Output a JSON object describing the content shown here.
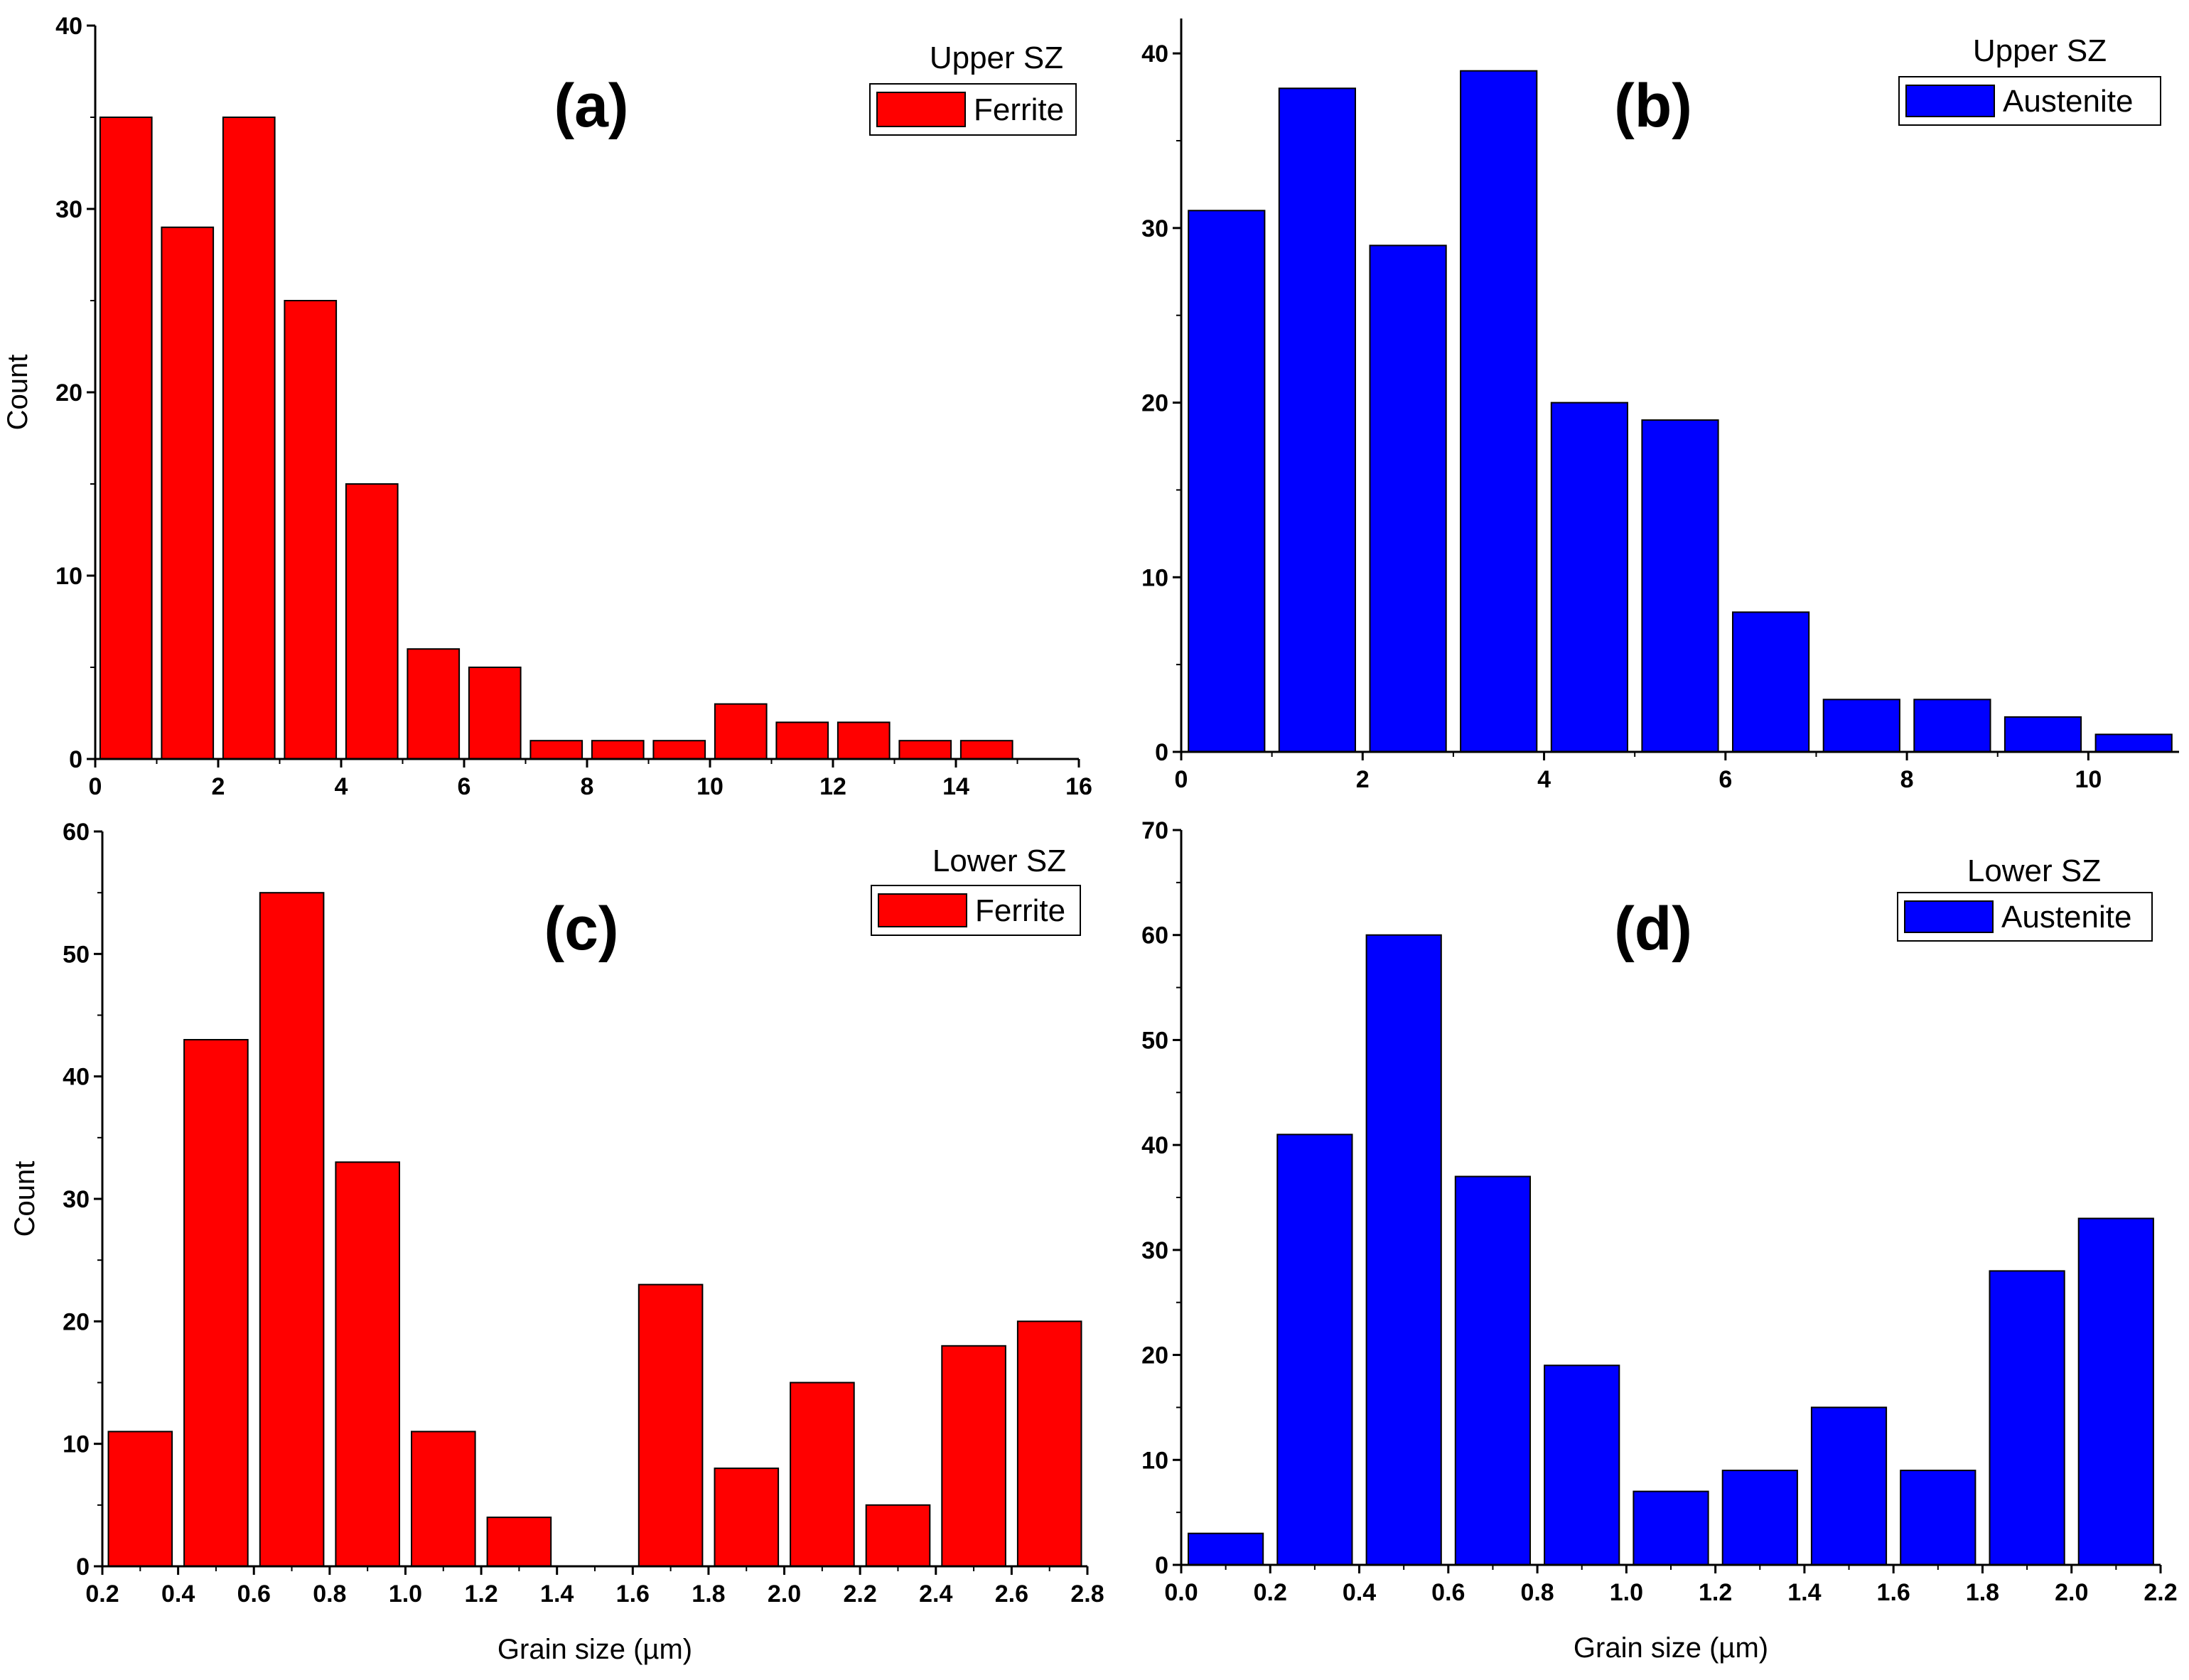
{
  "figure": {
    "panels": [
      "a",
      "b",
      "c",
      "d"
    ]
  },
  "colors": {
    "ferrite": "#ff0000",
    "austenite": "#0000ff",
    "axis": "#000000"
  },
  "chart_data": [
    {
      "id": "a",
      "type": "bar",
      "panel_label": "(a)",
      "legend_title": "Upper SZ",
      "legend_entry": "Ferrite",
      "legend_position": "top-right",
      "series": [
        {
          "name": "Ferrite",
          "color": "#ff0000",
          "bins": [
            [
              0,
              1
            ],
            [
              1,
              2
            ],
            [
              2,
              3
            ],
            [
              3,
              4
            ],
            [
              4,
              5
            ],
            [
              5,
              6
            ],
            [
              6,
              7
            ],
            [
              7,
              8
            ],
            [
              8,
              9
            ],
            [
              9,
              10
            ],
            [
              10,
              11
            ],
            [
              11,
              12
            ],
            [
              12,
              13
            ],
            [
              13,
              14
            ],
            [
              14,
              15
            ]
          ],
          "values": [
            35,
            29,
            35,
            25,
            15,
            6,
            5,
            1,
            1,
            1,
            3,
            2,
            2,
            1,
            1
          ]
        }
      ],
      "xlabel": "",
      "ylabel": "Count",
      "xlim": [
        0,
        16
      ],
      "ylim": [
        0,
        40
      ],
      "xticks": [
        0,
        2,
        4,
        6,
        8,
        10,
        12,
        14,
        16
      ],
      "xtick_labels": [
        "0",
        "2",
        "4",
        "6",
        "8",
        "10",
        "12",
        "14",
        "16"
      ],
      "yticks": [
        0,
        10,
        20,
        30,
        40
      ],
      "ytick_labels": [
        "0",
        "10",
        "20",
        "30",
        "40"
      ],
      "grid": false
    },
    {
      "id": "b",
      "type": "bar",
      "panel_label": "(b)",
      "legend_title": "Upper SZ",
      "legend_entry": "Austenite",
      "legend_position": "top-right",
      "series": [
        {
          "name": "Austenite",
          "color": "#0000ff",
          "bins": [
            [
              0,
              1
            ],
            [
              1,
              2
            ],
            [
              2,
              3
            ],
            [
              3,
              4
            ],
            [
              4,
              5
            ],
            [
              5,
              6
            ],
            [
              6,
              7
            ],
            [
              7,
              8
            ],
            [
              8,
              9
            ],
            [
              9,
              10
            ],
            [
              10,
              11
            ]
          ],
          "values": [
            31,
            38,
            29,
            39,
            20,
            19,
            8,
            3,
            3,
            2,
            1
          ]
        }
      ],
      "xlabel": "",
      "ylabel": "",
      "xlim": [
        0,
        11
      ],
      "ylim": [
        0,
        42
      ],
      "xticks": [
        0,
        2,
        4,
        6,
        8,
        10
      ],
      "xtick_labels": [
        "0",
        "2",
        "4",
        "6",
        "8",
        "10"
      ],
      "yticks": [
        0,
        10,
        20,
        30,
        40
      ],
      "ytick_labels": [
        "0",
        "10",
        "20",
        "30",
        "40"
      ],
      "grid": false
    },
    {
      "id": "c",
      "type": "bar",
      "panel_label": "(c)",
      "legend_title": "Lower SZ",
      "legend_entry": "Ferrite",
      "legend_position": "top-right",
      "series": [
        {
          "name": "Ferrite",
          "color": "#ff0000",
          "bins": [
            [
              0.2,
              0.4
            ],
            [
              0.4,
              0.6
            ],
            [
              0.6,
              0.8
            ],
            [
              0.8,
              1.0
            ],
            [
              1.0,
              1.2
            ],
            [
              1.2,
              1.4
            ],
            [
              1.4,
              1.6
            ],
            [
              1.6,
              1.8
            ],
            [
              1.8,
              2.0
            ],
            [
              2.0,
              2.2
            ],
            [
              2.2,
              2.4
            ],
            [
              2.4,
              2.6
            ],
            [
              2.6,
              2.8
            ]
          ],
          "values": [
            11,
            43,
            55,
            33,
            11,
            4,
            0,
            23,
            8,
            15,
            5,
            18,
            20
          ]
        }
      ],
      "xlabel": "Grain size (µm)",
      "ylabel": "Count",
      "xlim": [
        0.2,
        2.8
      ],
      "ylim": [
        0,
        60
      ],
      "xticks": [
        0.2,
        0.4,
        0.6,
        0.8,
        1.0,
        1.2,
        1.4,
        1.6,
        1.8,
        2.0,
        2.2,
        2.4,
        2.6,
        2.8
      ],
      "xtick_labels": [
        "0.2",
        "0.4",
        "0.6",
        "0.8",
        "1.0",
        "1.2",
        "1.4",
        "1.6",
        "1.8",
        "2.0",
        "2.2",
        "2.4",
        "2.6",
        "2.8"
      ],
      "yticks": [
        0,
        10,
        20,
        30,
        40,
        50,
        60
      ],
      "ytick_labels": [
        "0",
        "10",
        "20",
        "30",
        "40",
        "50",
        "60"
      ],
      "grid": false
    },
    {
      "id": "d",
      "type": "bar",
      "panel_label": "(d)",
      "legend_title": "Lower SZ",
      "legend_entry": "Austenite",
      "legend_position": "top-right",
      "series": [
        {
          "name": "Austenite",
          "color": "#0000ff",
          "bins": [
            [
              0.0,
              0.2
            ],
            [
              0.2,
              0.4
            ],
            [
              0.4,
              0.6
            ],
            [
              0.6,
              0.8
            ],
            [
              0.8,
              1.0
            ],
            [
              1.0,
              1.2
            ],
            [
              1.2,
              1.4
            ],
            [
              1.4,
              1.6
            ],
            [
              1.6,
              1.8
            ],
            [
              1.8,
              2.0
            ],
            [
              2.0,
              2.2
            ]
          ],
          "values": [
            3,
            41,
            60,
            37,
            19,
            7,
            9,
            15,
            9,
            28,
            33
          ]
        }
      ],
      "xlabel": "Grain size (µm)",
      "ylabel": "",
      "xlim": [
        0.0,
        2.2
      ],
      "ylim": [
        0,
        70
      ],
      "xticks": [
        0.0,
        0.2,
        0.4,
        0.6,
        0.8,
        1.0,
        1.2,
        1.4,
        1.6,
        1.8,
        2.0,
        2.2
      ],
      "xtick_labels": [
        "0.0",
        "0.2",
        "0.4",
        "0.6",
        "0.8",
        "1.0",
        "1.2",
        "1.4",
        "1.6",
        "1.8",
        "2.0",
        "2.2"
      ],
      "yticks": [
        0,
        10,
        20,
        30,
        40,
        50,
        60,
        70
      ],
      "ytick_labels": [
        "0",
        "10",
        "20",
        "30",
        "40",
        "50",
        "60",
        "70"
      ],
      "grid": false
    }
  ]
}
